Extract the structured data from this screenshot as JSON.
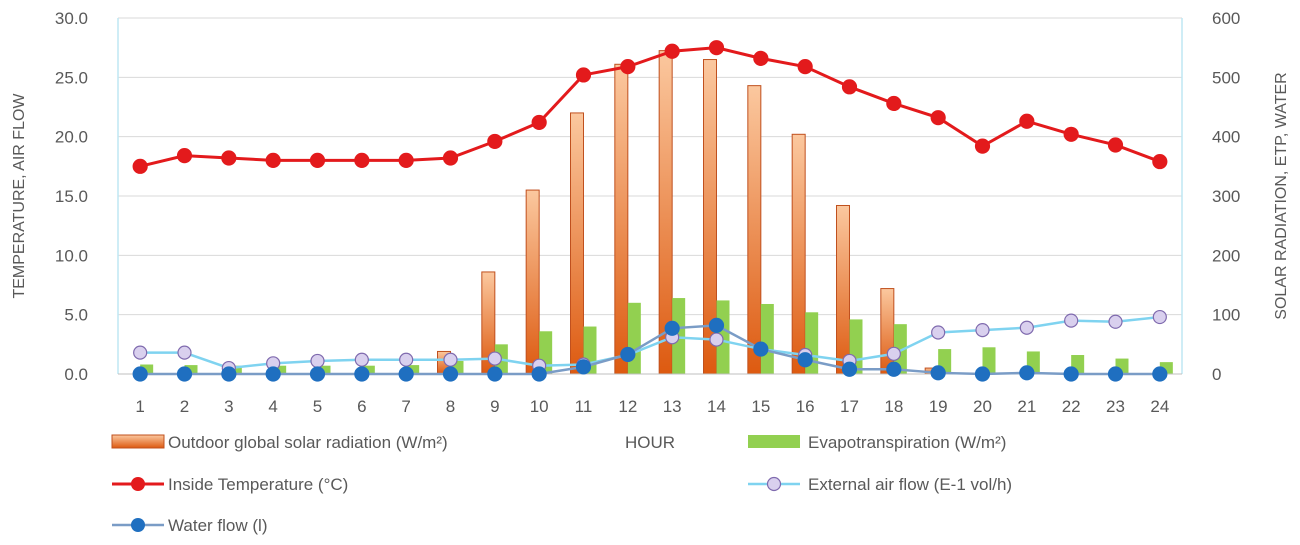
{
  "chart_data": {
    "type": "bar",
    "categories": [
      "1",
      "2",
      "3",
      "4",
      "5",
      "6",
      "7",
      "8",
      "9",
      "10",
      "11",
      "12",
      "13",
      "14",
      "15",
      "16",
      "17",
      "18",
      "19",
      "20",
      "21",
      "22",
      "23",
      "24"
    ],
    "xlabel": "HOUR",
    "ylabel_left": "TEMPERATURE, AIR FLOW",
    "ylabel_right": "SOLAR RADIATION, ETP, WATER",
    "y_left": {
      "min": 0,
      "max": 30,
      "step": 5,
      "tick_labels": [
        "0.0",
        "5.0",
        "10.0",
        "15.0",
        "20.0",
        "25.0",
        "30.0"
      ]
    },
    "y_right": {
      "min": 0,
      "max": 600,
      "step": 100,
      "tick_labels": [
        "0",
        "100",
        "200",
        "300",
        "400",
        "500",
        "600"
      ]
    },
    "grid": "horizontal",
    "legend_position": "bottom",
    "series": [
      {
        "name": "Outdoor global solar radiation (W/m²)",
        "type": "bar",
        "axis": "right",
        "color": "#e8742a",
        "values": [
          0,
          0,
          0,
          0,
          0,
          0,
          0,
          38,
          172,
          310,
          440,
          522,
          545,
          530,
          486,
          404,
          284,
          144,
          10,
          0,
          0,
          0,
          0,
          0
        ]
      },
      {
        "name": "Evapotranspiration (W/m²)",
        "type": "bar",
        "axis": "right",
        "color": "#92d050",
        "values": [
          16,
          15,
          14,
          14,
          14,
          14,
          15,
          22,
          50,
          72,
          80,
          120,
          128,
          124,
          118,
          104,
          92,
          84,
          42,
          45,
          38,
          32,
          26,
          20
        ]
      },
      {
        "name": "Inside Temperature (°C)",
        "type": "line",
        "axis": "left",
        "color": "#e31a1c",
        "values": [
          17.5,
          18.4,
          18.2,
          18.0,
          18.0,
          18.0,
          18.0,
          18.2,
          19.6,
          21.2,
          25.2,
          25.9,
          27.2,
          27.5,
          26.6,
          25.9,
          24.2,
          22.8,
          21.6,
          19.2,
          21.3,
          20.2,
          19.3,
          17.9
        ]
      },
      {
        "name": "External air flow (E-1 vol/h)",
        "type": "line",
        "axis": "left",
        "color": "#7fd3f0",
        "marker_fill": "#d9d0ee",
        "marker_stroke": "#7f6aae",
        "values": [
          1.8,
          1.8,
          0.5,
          0.9,
          1.1,
          1.2,
          1.2,
          1.2,
          1.3,
          0.7,
          0.8,
          1.6,
          3.1,
          2.9,
          2.1,
          1.6,
          1.1,
          1.7,
          3.5,
          3.7,
          3.9,
          4.5,
          4.4,
          4.8
        ]
      },
      {
        "name": "Water flow (l)",
        "type": "line",
        "axis": "right",
        "color": "#7a9cc6",
        "marker_fill": "#1f6fc0",
        "values": [
          0,
          0,
          0,
          0,
          0,
          0,
          0,
          0,
          0,
          0,
          12,
          33,
          77,
          82,
          42,
          24,
          8,
          8,
          2,
          0,
          2,
          0,
          0,
          0
        ]
      }
    ]
  }
}
